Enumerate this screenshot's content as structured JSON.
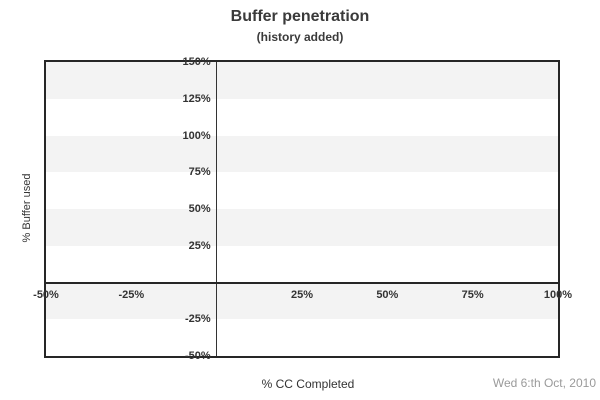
{
  "chart_data": {
    "type": "line",
    "title": "Buffer penetration",
    "subtitle": "(history added)",
    "xlabel": "% CC Completed",
    "ylabel": "% Buffer used",
    "date_label": "Wed 6:th Oct, 2010",
    "xlim": [
      -50,
      100
    ],
    "ylim": [
      -50,
      150
    ],
    "x_ticks": [
      {
        "value": -50,
        "label": "-50%"
      },
      {
        "value": -25,
        "label": "-25%"
      },
      {
        "value": 25,
        "label": "25%"
      },
      {
        "value": 50,
        "label": "50%"
      },
      {
        "value": 75,
        "label": "75%"
      },
      {
        "value": 100,
        "label": "100%"
      }
    ],
    "y_ticks": [
      {
        "value": 150,
        "label": "150%"
      },
      {
        "value": 125,
        "label": "125%"
      },
      {
        "value": 100,
        "label": "100%"
      },
      {
        "value": 75,
        "label": "75%"
      },
      {
        "value": 50,
        "label": "50%"
      },
      {
        "value": 25,
        "label": "25%"
      },
      {
        "value": -25,
        "label": "-25%"
      },
      {
        "value": -50,
        "label": "-50%"
      }
    ],
    "band_step": 25,
    "band_colors": [
      "#f3f3f3",
      "#ffffff"
    ],
    "grid": "alternating horizontal bands every 25%, zero axes drawn as dark lines, full rectangular border",
    "legend_position": "none",
    "series": [],
    "colors": {
      "axis_line": "#262626",
      "tick_text": "#333333",
      "title_text": "#3a3a3a",
      "date_text": "#9a9a9a",
      "band_gray": "#f3f3f3",
      "background": "#ffffff"
    }
  }
}
